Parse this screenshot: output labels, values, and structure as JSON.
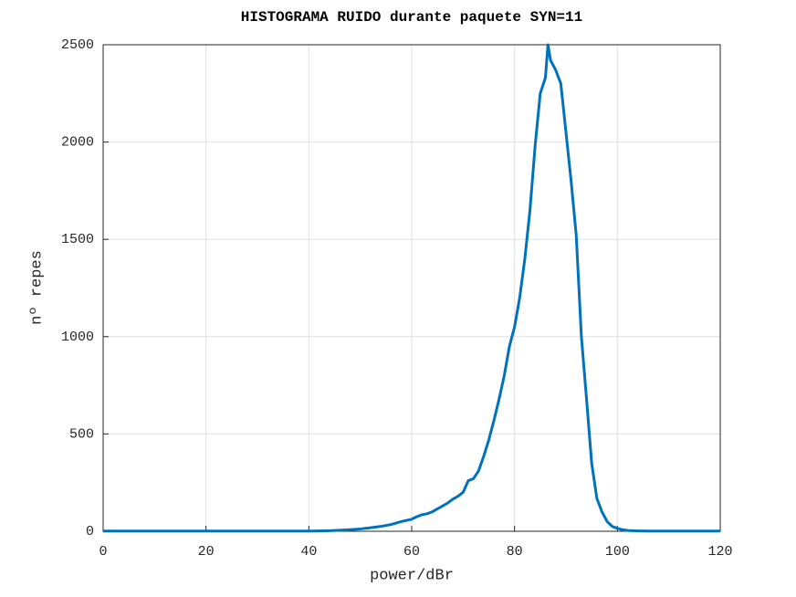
{
  "chart_data": {
    "type": "line",
    "title": "HISTOGRAMA RUIDO durante paquete SYN=11",
    "x_label": "power/dBr",
    "y_label": "nº repes",
    "x": [
      0,
      2,
      4,
      6,
      8,
      10,
      12,
      14,
      16,
      18,
      20,
      22,
      24,
      26,
      28,
      30,
      32,
      34,
      36,
      38,
      40,
      42,
      44,
      46,
      48,
      50,
      52,
      54,
      56,
      58,
      60,
      61,
      62,
      63,
      64,
      65,
      66,
      67,
      68,
      69,
      70,
      71,
      72,
      73,
      74,
      75,
      76,
      77,
      78,
      79,
      80,
      81,
      82,
      83,
      84,
      85,
      86,
      86.5,
      87,
      88,
      89,
      90,
      91,
      92,
      93,
      94,
      95,
      96,
      97,
      98,
      99,
      100,
      101,
      102,
      104,
      106,
      108,
      110,
      112,
      114,
      116,
      118,
      120
    ],
    "series": [
      {
        "name": "ruido",
        "color": "#0072bd",
        "values": [
          1,
          1,
          1,
          1,
          1,
          1,
          1,
          1,
          1,
          1,
          1,
          1,
          1,
          1,
          1,
          1,
          1,
          1,
          1,
          1,
          1,
          2,
          3,
          5,
          8,
          12,
          18,
          25,
          35,
          50,
          62,
          75,
          85,
          90,
          100,
          115,
          130,
          145,
          165,
          180,
          200,
          260,
          270,
          310,
          385,
          470,
          570,
          680,
          800,
          950,
          1050,
          1200,
          1400,
          1650,
          1980,
          2250,
          2330,
          2500,
          2420,
          2370,
          2300,
          2050,
          1800,
          1520,
          1000,
          680,
          350,
          170,
          100,
          50,
          25,
          15,
          8,
          4,
          2,
          1,
          1,
          1,
          1,
          1,
          1,
          1,
          1
        ]
      }
    ],
    "xlim": [
      0,
      120
    ],
    "xticks": [
      0,
      20,
      40,
      60,
      80,
      100,
      120
    ],
    "ylim": [
      0,
      2500
    ],
    "yticks": [
      0,
      500,
      1000,
      1500,
      2000,
      2500
    ],
    "grid": true
  }
}
